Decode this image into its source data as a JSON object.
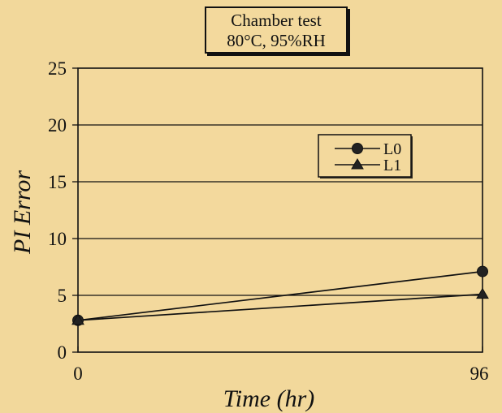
{
  "chart_data": {
    "type": "line",
    "title": "Chamber test",
    "subtitle": "80°C, 95%RH",
    "xlabel": "Time (hr)",
    "ylabel": "PI Error",
    "x": [
      0,
      96
    ],
    "x_tick_labels": [
      "0",
      "96"
    ],
    "y_tick_labels": [
      "0",
      "5",
      "10",
      "15",
      "20",
      "25"
    ],
    "xlim": [
      0,
      96
    ],
    "ylim": [
      0,
      25
    ],
    "grid": "horizontal",
    "legend_position": "top-right",
    "series": [
      {
        "name": "L0",
        "marker": "circle",
        "color": "#111111",
        "values": [
          2.8,
          7.1
        ]
      },
      {
        "name": "L1",
        "marker": "triangle",
        "color": "#111111",
        "values": [
          2.8,
          5.1
        ]
      }
    ],
    "background_color": "#f2d89b",
    "plot_color": "#f3d99d"
  }
}
